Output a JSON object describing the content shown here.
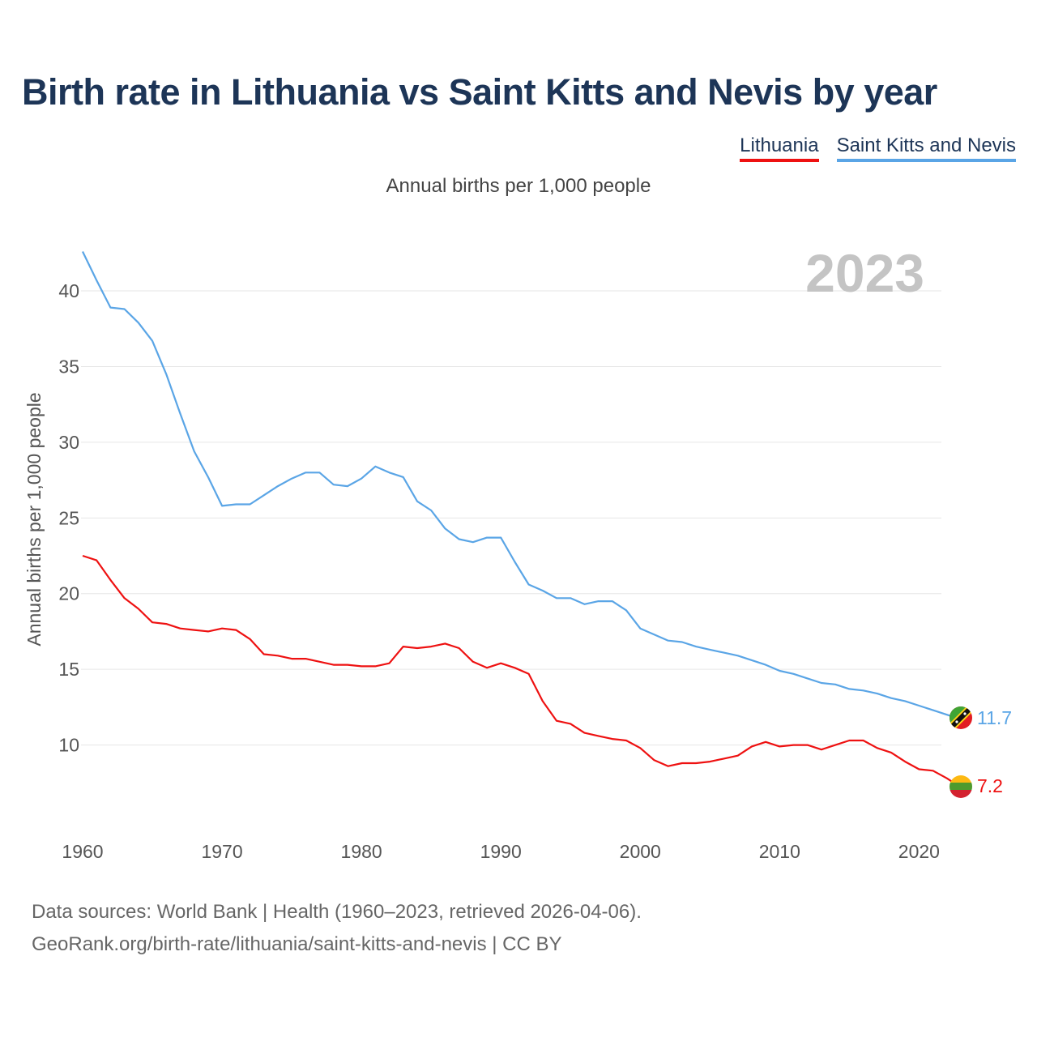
{
  "header": {
    "title": "Birth rate in Lithuania vs Saint Kitts and Nevis by year",
    "subtitle": "Annual births per 1,000 people"
  },
  "legend": {
    "lithuania": "Lithuania",
    "saint_kitts": "Saint Kitts and Nevis"
  },
  "colors": {
    "lithuania": "#ee1111",
    "saint_kitts": "#5aa5e6",
    "title": "#1d3557"
  },
  "footer": {
    "line1": "Data sources: World Bank | Health (1960–2023, retrieved 2026-04-06).",
    "line2": "GeoRank.org/birth-rate/lithuania/saint-kitts-and-nevis | CC BY"
  },
  "chart_data": {
    "type": "line",
    "title": "Birth rate in Lithuania vs Saint Kitts and Nevis by year",
    "ylabel": "Annual births per 1,000 people",
    "xlabel": "",
    "year_label": "2023",
    "xlim": [
      1960,
      2023
    ],
    "ylim": [
      5,
      43
    ],
    "yticks": [
      10,
      15,
      20,
      25,
      30,
      35,
      40
    ],
    "xticks": [
      1960,
      1970,
      1980,
      1990,
      2000,
      2010,
      2020
    ],
    "x": [
      1960,
      1961,
      1962,
      1963,
      1964,
      1965,
      1966,
      1967,
      1968,
      1969,
      1970,
      1971,
      1972,
      1973,
      1974,
      1975,
      1976,
      1977,
      1978,
      1979,
      1980,
      1981,
      1982,
      1983,
      1984,
      1985,
      1986,
      1987,
      1988,
      1989,
      1990,
      1991,
      1992,
      1993,
      1994,
      1995,
      1996,
      1997,
      1998,
      1999,
      2000,
      2001,
      2002,
      2003,
      2004,
      2005,
      2006,
      2007,
      2008,
      2009,
      2010,
      2011,
      2012,
      2013,
      2014,
      2015,
      2016,
      2017,
      2018,
      2019,
      2020,
      2021,
      2022,
      2023
    ],
    "series": [
      {
        "name": "Lithuania",
        "end_label": "7.2",
        "values": [
          22.5,
          22.2,
          20.9,
          19.7,
          19.0,
          18.1,
          18.0,
          17.7,
          17.6,
          17.5,
          17.7,
          17.6,
          17.0,
          16.0,
          15.9,
          15.7,
          15.7,
          15.5,
          15.3,
          15.3,
          15.2,
          15.2,
          15.4,
          16.5,
          16.4,
          16.5,
          16.7,
          16.4,
          15.5,
          15.1,
          15.4,
          15.1,
          14.7,
          12.9,
          11.6,
          11.4,
          10.8,
          10.6,
          10.4,
          10.3,
          9.8,
          9.0,
          8.6,
          8.8,
          8.8,
          8.9,
          9.1,
          9.3,
          9.9,
          10.2,
          9.9,
          10.0,
          10.0,
          9.7,
          10.0,
          10.3,
          10.3,
          9.8,
          9.5,
          8.9,
          8.4,
          8.3,
          7.8,
          7.2
        ]
      },
      {
        "name": "Saint Kitts and Nevis",
        "end_label": "11.7",
        "values": [
          42.6,
          40.7,
          38.9,
          38.8,
          37.9,
          36.7,
          34.5,
          31.9,
          29.4,
          27.7,
          25.8,
          25.9,
          25.9,
          26.5,
          27.1,
          27.6,
          28.0,
          28.0,
          27.2,
          27.1,
          27.6,
          28.4,
          28.0,
          27.7,
          26.1,
          25.5,
          24.3,
          23.6,
          23.4,
          23.7,
          23.7,
          22.1,
          20.6,
          20.2,
          19.7,
          19.7,
          19.3,
          19.5,
          19.5,
          18.9,
          17.7,
          17.3,
          16.9,
          16.8,
          16.5,
          16.3,
          16.1,
          15.9,
          15.6,
          15.3,
          14.9,
          14.7,
          14.4,
          14.1,
          14.0,
          13.7,
          13.6,
          13.4,
          13.1,
          12.9,
          12.6,
          12.3,
          12.0,
          11.7
        ]
      }
    ]
  }
}
